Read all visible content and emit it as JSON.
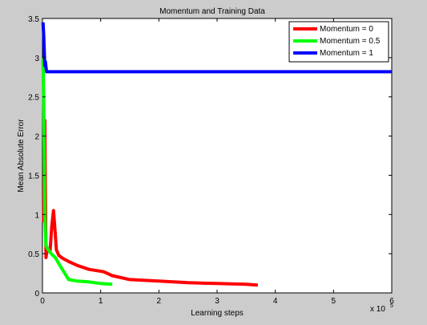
{
  "chart_data": {
    "type": "line",
    "title": "Momentum and Training Data",
    "xlabel": "Learning steps",
    "ylabel": "Mean  Absolute Error",
    "x_multiplier_label": "x 10",
    "x_multiplier_exponent": "5",
    "xlim": [
      0,
      6
    ],
    "ylim": [
      0,
      3.5
    ],
    "xticks": [
      0,
      1,
      2,
      3,
      4,
      5,
      6
    ],
    "yticks": [
      0,
      0.5,
      1,
      1.5,
      2,
      2.5,
      3,
      3.5
    ],
    "xtick_labels": [
      "0",
      "1",
      "2",
      "3",
      "4",
      "5",
      "6"
    ],
    "ytick_labels": [
      "0",
      "0.5",
      "1",
      "1.5",
      "2",
      "2.5",
      "3",
      "3.5"
    ],
    "grid": false,
    "legend_position": "top-right",
    "series": [
      {
        "name": "Momentum = 0",
        "color": "#ff0000",
        "x": [
          0.02,
          0.04,
          0.06,
          0.08,
          0.1,
          0.13,
          0.16,
          0.19,
          0.21,
          0.24,
          0.28,
          0.35,
          0.45,
          0.6,
          0.8,
          1.05,
          1.2,
          1.5,
          2.0,
          2.5,
          3.0,
          3.5,
          3.7
        ],
        "y": [
          0.9,
          2.2,
          0.45,
          0.55,
          0.55,
          0.52,
          0.85,
          1.05,
          0.85,
          0.55,
          0.48,
          0.44,
          0.4,
          0.35,
          0.3,
          0.27,
          0.22,
          0.17,
          0.15,
          0.13,
          0.12,
          0.11,
          0.1
        ]
      },
      {
        "name": "Momentum = 0.5",
        "color": "#00ff00",
        "x": [
          0.01,
          0.02,
          0.03,
          0.04,
          0.06,
          0.1,
          0.15,
          0.22,
          0.3,
          0.45,
          0.6,
          0.8,
          1.0,
          1.2
        ],
        "y": [
          3.0,
          2.5,
          1.8,
          1.0,
          0.6,
          0.55,
          0.5,
          0.45,
          0.35,
          0.17,
          0.15,
          0.14,
          0.12,
          0.11
        ]
      },
      {
        "name": "Momentum = 1",
        "color": "#0000ff",
        "x": [
          0.01,
          0.02,
          0.03,
          0.04,
          0.05,
          0.07,
          0.1,
          1.0,
          2.0,
          3.0,
          4.0,
          5.0,
          6.0
        ],
        "y": [
          3.45,
          3.3,
          3.1,
          2.9,
          2.95,
          2.82,
          2.82,
          2.82,
          2.82,
          2.82,
          2.82,
          2.82,
          2.82
        ]
      }
    ]
  }
}
